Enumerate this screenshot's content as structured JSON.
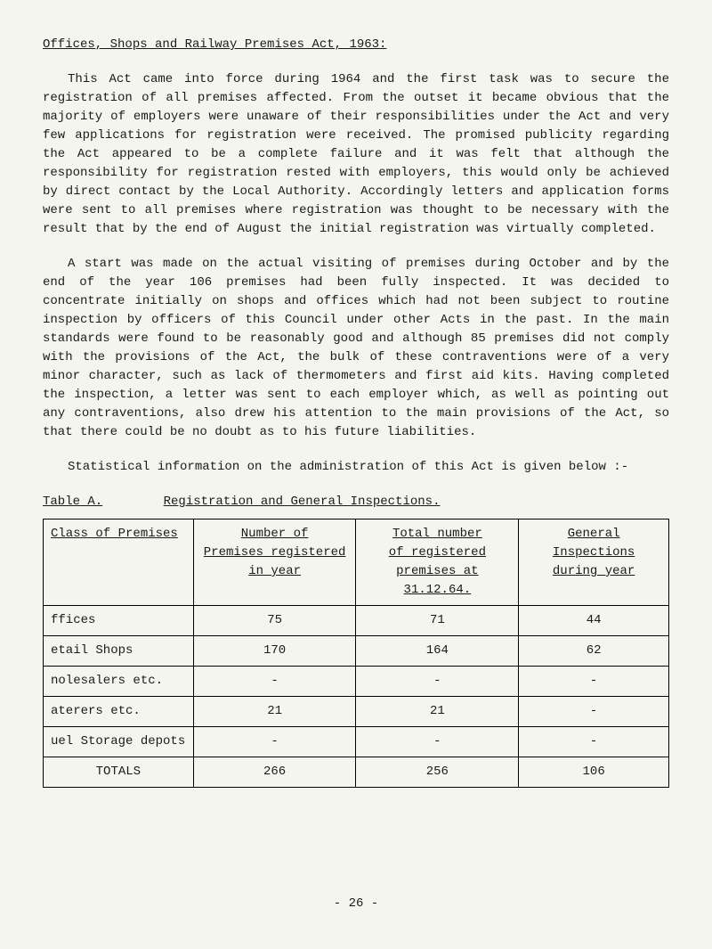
{
  "title": "Offices, Shops and Railway Premises Act, 1963:",
  "paragraphs": [
    "This Act came into force during 1964 and the first task was to secure the registration of all premises affected. From the outset it became obvious that the majority of employers were unaware of their responsibilities under the Act and very few applications for registration were received. The promised publicity regarding the Act appeared to be a complete failure and it was felt that although the responsibility for registration rested with employers, this would only be achieved by direct contact by the Local Authority. Accordingly letters and application forms were sent to all premises where registration was thought to be necessary with the result that by the end of August the initial registration was virtually completed.",
    "A start was made on the actual visiting of premises during October and by the end of the year 106 premises had been fully inspected. It was decided to concentrate initially on shops and offices which had not been subject to routine inspection by officers of this Council under other Acts in the past. In the main standards were found to be reasonably good and although 85 premises did not comply with the provisions of the Act, the bulk of these contraventions were of a very minor character, such as lack of thermometers and first aid kits. Having completed the inspection, a letter was sent to each employer which, as well as pointing out any contraventions, also drew his attention to the main provisions of the Act, so that there could be no doubt as to his future liabilities.",
    "Statistical information on the administration of this Act is given below :-"
  ],
  "table_label": "Table A.",
  "table_caption": "Registration and General Inspections.",
  "table": {
    "headers": {
      "class": "Class of Premises",
      "num_line1": "Number of",
      "num_line2": "Premises registered",
      "num_line3": "in year",
      "total_line1": "Total number",
      "total_line2": "of registered",
      "total_line3": "premises at 31.12.64.",
      "gen_line1": "General Inspections",
      "gen_line2": "during year"
    },
    "rows": [
      {
        "class": "ffices",
        "num": "75",
        "total": "71",
        "gen": "44"
      },
      {
        "class": "etail Shops",
        "num": "170",
        "total": "164",
        "gen": "62"
      },
      {
        "class": "nolesalers etc.",
        "num": "-",
        "total": "-",
        "gen": "-"
      },
      {
        "class": "aterers etc.",
        "num": "21",
        "total": "21",
        "gen": "-"
      },
      {
        "class": "uel Storage depots",
        "num": "-",
        "total": "-",
        "gen": "-"
      }
    ],
    "totals": {
      "class": "TOTALS",
      "num": "266",
      "total": "256",
      "gen": "106"
    }
  },
  "page_number": "- 26 -"
}
